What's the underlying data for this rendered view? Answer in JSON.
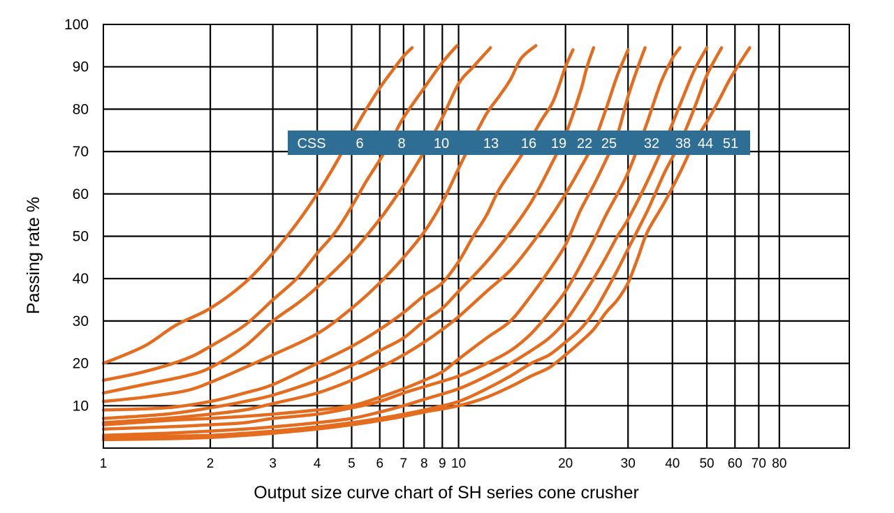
{
  "chart_data": {
    "type": "line",
    "title": "",
    "xlabel": "Output size curve chart of SH series cone crusher",
    "ylabel": "Passing rate %",
    "x_scale": "log",
    "xlim": [
      1,
      100
    ],
    "ylim": [
      0,
      100
    ],
    "grid": true,
    "x_ticks": [
      1,
      2,
      3,
      4,
      5,
      6,
      7,
      8,
      9,
      10,
      20,
      30,
      40,
      50,
      60,
      70,
      80
    ],
    "x_tick_labels": [
      "1",
      "2",
      "3",
      "4",
      "5",
      "6",
      "7",
      "8",
      "9",
      "10",
      "20",
      "30",
      "40",
      "50",
      "60",
      "70",
      "80"
    ],
    "y_ticks": [
      10,
      20,
      30,
      40,
      50,
      60,
      70,
      80,
      90,
      100
    ],
    "y_tick_labels": [
      "10",
      "20",
      "30",
      "40",
      "50",
      "60",
      "70",
      "80",
      "90",
      "100"
    ],
    "line_color": "#e36c1e",
    "legend_box": {
      "background": "#2e6e95",
      "title": "CSS",
      "labels": [
        "6",
        "8",
        "10",
        "13",
        "16",
        "19",
        "22",
        "25",
        "32",
        "38",
        "44",
        "51"
      ]
    },
    "series": [
      {
        "name": "6",
        "points": [
          [
            1,
            20
          ],
          [
            1.3,
            24
          ],
          [
            1.6,
            29
          ],
          [
            2,
            33
          ],
          [
            2.5,
            39
          ],
          [
            3,
            46
          ],
          [
            3.5,
            53
          ],
          [
            4,
            60
          ],
          [
            4.5,
            67
          ],
          [
            5,
            74
          ],
          [
            5.5,
            80
          ],
          [
            6,
            85
          ],
          [
            6.5,
            89
          ],
          [
            7,
            92.5
          ],
          [
            7.4,
            94.5
          ]
        ]
      },
      {
        "name": "8",
        "points": [
          [
            1,
            16
          ],
          [
            1.3,
            18
          ],
          [
            1.7,
            21
          ],
          [
            2,
            24
          ],
          [
            2.5,
            29
          ],
          [
            3,
            35
          ],
          [
            3.5,
            40
          ],
          [
            4,
            46
          ],
          [
            4.5,
            51
          ],
          [
            5,
            57
          ],
          [
            5.5,
            63
          ],
          [
            6,
            68
          ],
          [
            6.5,
            73
          ],
          [
            7,
            78
          ],
          [
            8,
            85
          ],
          [
            9,
            91
          ],
          [
            9.9,
            95
          ]
        ]
      },
      {
        "name": "10",
        "points": [
          [
            1,
            13
          ],
          [
            1.3,
            15
          ],
          [
            1.7,
            17
          ],
          [
            2,
            19
          ],
          [
            2.5,
            24
          ],
          [
            3,
            30
          ],
          [
            3.5,
            34
          ],
          [
            4,
            38
          ],
          [
            5,
            46
          ],
          [
            6,
            54
          ],
          [
            6.5,
            58
          ],
          [
            7,
            62
          ],
          [
            7.5,
            66
          ],
          [
            8,
            70
          ],
          [
            9,
            78
          ],
          [
            10,
            86
          ],
          [
            11,
            90
          ],
          [
            12.3,
            94.5
          ]
        ]
      },
      {
        "name": "13",
        "points": [
          [
            1,
            11
          ],
          [
            1.3,
            12
          ],
          [
            1.7,
            13.5
          ],
          [
            2,
            15.5
          ],
          [
            2.5,
            19
          ],
          [
            3,
            22
          ],
          [
            4,
            27
          ],
          [
            5,
            33
          ],
          [
            6,
            39
          ],
          [
            7,
            45
          ],
          [
            8,
            51
          ],
          [
            9,
            58
          ],
          [
            10,
            66
          ],
          [
            11,
            73
          ],
          [
            12,
            79
          ],
          [
            13,
            83
          ],
          [
            14,
            87
          ],
          [
            15,
            92
          ],
          [
            16.5,
            95
          ]
        ]
      },
      {
        "name": "16",
        "points": [
          [
            1,
            9
          ],
          [
            1.5,
            9.5
          ],
          [
            2,
            11
          ],
          [
            2.5,
            13
          ],
          [
            3,
            15
          ],
          [
            4,
            20
          ],
          [
            5,
            24
          ],
          [
            6,
            28
          ],
          [
            7,
            32
          ],
          [
            8,
            36
          ],
          [
            9,
            39
          ],
          [
            10,
            44
          ],
          [
            11,
            50
          ],
          [
            12,
            55
          ],
          [
            13,
            61
          ],
          [
            15,
            69
          ],
          [
            17,
            77
          ],
          [
            18.5,
            82
          ],
          [
            20,
            90
          ],
          [
            21,
            94
          ]
        ]
      },
      {
        "name": "19",
        "points": [
          [
            1,
            7
          ],
          [
            1.5,
            8
          ],
          [
            2,
            9.5
          ],
          [
            2.5,
            11
          ],
          [
            3,
            12.5
          ],
          [
            4,
            16
          ],
          [
            5,
            19.5
          ],
          [
            6,
            23
          ],
          [
            7,
            26
          ],
          [
            8,
            30
          ],
          [
            9,
            33
          ],
          [
            10,
            37
          ],
          [
            12,
            44
          ],
          [
            14,
            51
          ],
          [
            16,
            58
          ],
          [
            18,
            66
          ],
          [
            20,
            74
          ],
          [
            22,
            84
          ],
          [
            23,
            90
          ],
          [
            24,
            94.5
          ]
        ]
      },
      {
        "name": "22",
        "points": [
          [
            1,
            6
          ],
          [
            1.5,
            7
          ],
          [
            2,
            8
          ],
          [
            2.5,
            9
          ],
          [
            3,
            10.5
          ],
          [
            4,
            13
          ],
          [
            5,
            16
          ],
          [
            6,
            19
          ],
          [
            7,
            22
          ],
          [
            8,
            25
          ],
          [
            9,
            28
          ],
          [
            10,
            31
          ],
          [
            12,
            37
          ],
          [
            14,
            42
          ],
          [
            16,
            48
          ],
          [
            18,
            54
          ],
          [
            20,
            60
          ],
          [
            22,
            66
          ],
          [
            24,
            72
          ],
          [
            26,
            80
          ],
          [
            28,
            88
          ],
          [
            30,
            94
          ]
        ]
      },
      {
        "name": "25",
        "points": [
          [
            1,
            5.5
          ],
          [
            1.5,
            6.5
          ],
          [
            2,
            7
          ],
          [
            2.5,
            7.5
          ],
          [
            3,
            8
          ],
          [
            4,
            9
          ],
          [
            5,
            10
          ],
          [
            6,
            12
          ],
          [
            7,
            14
          ],
          [
            8,
            16
          ],
          [
            9,
            18
          ],
          [
            10,
            21
          ],
          [
            12,
            26
          ],
          [
            14,
            30
          ],
          [
            16,
            36
          ],
          [
            18,
            42
          ],
          [
            20,
            48
          ],
          [
            22,
            56
          ],
          [
            24,
            62
          ],
          [
            26,
            68
          ],
          [
            28,
            74
          ],
          [
            30,
            83
          ],
          [
            32,
            90
          ],
          [
            33.5,
            94.5
          ]
        ]
      },
      {
        "name": "32",
        "points": [
          [
            1,
            4.5
          ],
          [
            1.5,
            5
          ],
          [
            2,
            5.5
          ],
          [
            2.5,
            6
          ],
          [
            3,
            7
          ],
          [
            4,
            8
          ],
          [
            5,
            9.5
          ],
          [
            6,
            11
          ],
          [
            7,
            13
          ],
          [
            8,
            14.5
          ],
          [
            10,
            17
          ],
          [
            12,
            20
          ],
          [
            14,
            23
          ],
          [
            16,
            27
          ],
          [
            18,
            32
          ],
          [
            20,
            37
          ],
          [
            22,
            43
          ],
          [
            24,
            49
          ],
          [
            26,
            55
          ],
          [
            28,
            60
          ],
          [
            30,
            65
          ],
          [
            32,
            71
          ],
          [
            34,
            77
          ],
          [
            37,
            86
          ],
          [
            40,
            92
          ],
          [
            42,
            94.5
          ]
        ]
      },
      {
        "name": "38",
        "points": [
          [
            1,
            3
          ],
          [
            1.5,
            3.5
          ],
          [
            2,
            4
          ],
          [
            2.5,
            4.5
          ],
          [
            3,
            5
          ],
          [
            4,
            6
          ],
          [
            5,
            7
          ],
          [
            6,
            8.5
          ],
          [
            7,
            10
          ],
          [
            8,
            11.5
          ],
          [
            10,
            14
          ],
          [
            12,
            17
          ],
          [
            14,
            20
          ],
          [
            16,
            23
          ],
          [
            18,
            26
          ],
          [
            20,
            30
          ],
          [
            22,
            35
          ],
          [
            24,
            40
          ],
          [
            26,
            45
          ],
          [
            28,
            50
          ],
          [
            30,
            54
          ],
          [
            34,
            63
          ],
          [
            38,
            72
          ],
          [
            42,
            81
          ],
          [
            46,
            89
          ],
          [
            50,
            94.5
          ]
        ]
      },
      {
        "name": "44",
        "points": [
          [
            1,
            2.5
          ],
          [
            1.5,
            2.8
          ],
          [
            2,
            3
          ],
          [
            2.5,
            3.5
          ],
          [
            3,
            4
          ],
          [
            4,
            5
          ],
          [
            5,
            6
          ],
          [
            6,
            7
          ],
          [
            7,
            8
          ],
          [
            8,
            9
          ],
          [
            10,
            11
          ],
          [
            12,
            14
          ],
          [
            14,
            17
          ],
          [
            16,
            20
          ],
          [
            18,
            22
          ],
          [
            20,
            25
          ],
          [
            22,
            28
          ],
          [
            24,
            32
          ],
          [
            26,
            37
          ],
          [
            28,
            42
          ],
          [
            30,
            47
          ],
          [
            34,
            56
          ],
          [
            38,
            65
          ],
          [
            42,
            72
          ],
          [
            46,
            80
          ],
          [
            50,
            88
          ],
          [
            55,
            94.5
          ]
        ]
      },
      {
        "name": "51",
        "points": [
          [
            1,
            2
          ],
          [
            1.5,
            2.2
          ],
          [
            2,
            2.5
          ],
          [
            2.5,
            3
          ],
          [
            3,
            3.5
          ],
          [
            4,
            4.5
          ],
          [
            5,
            5.5
          ],
          [
            6,
            6.5
          ],
          [
            7,
            7.5
          ],
          [
            8,
            8.5
          ],
          [
            10,
            10
          ],
          [
            12,
            12
          ],
          [
            14,
            14.5
          ],
          [
            16,
            17
          ],
          [
            18,
            19
          ],
          [
            20,
            22
          ],
          [
            22,
            25
          ],
          [
            24,
            28
          ],
          [
            26,
            32
          ],
          [
            28,
            35
          ],
          [
            30,
            39
          ],
          [
            32,
            45
          ],
          [
            34,
            51
          ],
          [
            38,
            58
          ],
          [
            42,
            65
          ],
          [
            46,
            72
          ],
          [
            50,
            77
          ],
          [
            54,
            82
          ],
          [
            58,
            87
          ],
          [
            62,
            91
          ],
          [
            66,
            94.5
          ]
        ]
      }
    ]
  }
}
